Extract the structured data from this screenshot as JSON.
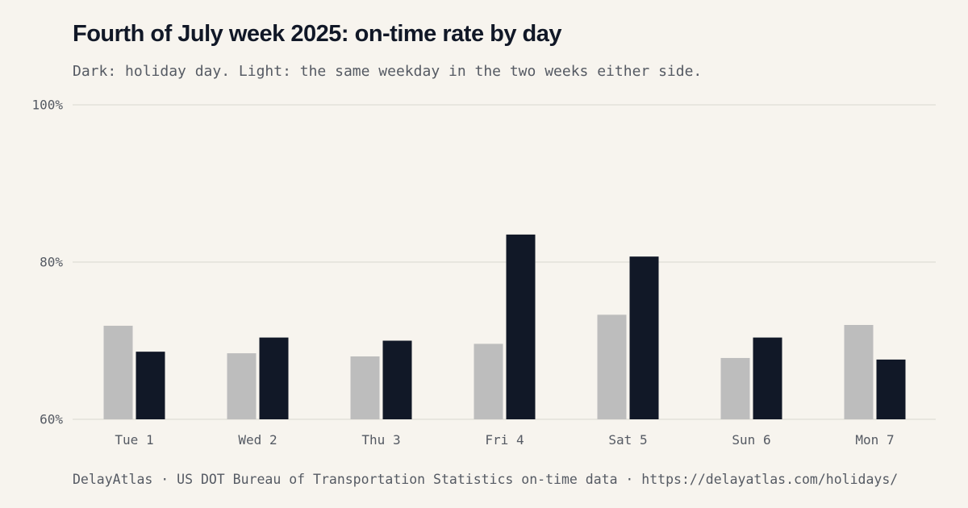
{
  "header": {
    "title": "Fourth of July week 2025: on-time rate by day",
    "subtitle": "Dark: holiday day. Light: the same weekday in the two weeks either side."
  },
  "footer": {
    "source": "DelayAtlas · US DOT Bureau of Transportation Statistics on-time data · https://delayatlas.com/holidays/"
  },
  "colors": {
    "holiday": "#111827",
    "comparison": "#bdbdbd",
    "grid": "#e4e1da",
    "text": "#555a63"
  },
  "chart_data": {
    "type": "bar",
    "title": "Fourth of July week 2025: on-time rate by day",
    "subtitle": "Dark: holiday day. Light: the same weekday in the two weeks either side.",
    "categories": [
      "Tue 1",
      "Wed 2",
      "Thu 3",
      "Fri 4",
      "Sat 5",
      "Sun 6",
      "Mon 7"
    ],
    "series": [
      {
        "values": [
          71.9,
          68.4,
          68.0,
          69.6,
          73.3,
          67.8,
          72.0
        ]
      },
      {
        "values": [
          68.6,
          70.4,
          70.0,
          83.5,
          80.7,
          70.4,
          67.6
        ]
      }
    ],
    "ylim": [
      60,
      100
    ],
    "yticks": [
      60,
      80,
      100
    ],
    "ytick_labels": [
      "60%",
      "80%",
      "100%"
    ],
    "grid": true,
    "legend": "none"
  }
}
